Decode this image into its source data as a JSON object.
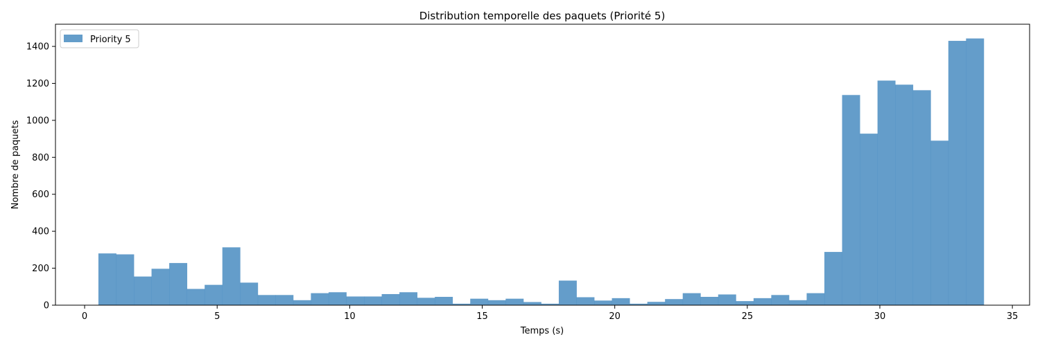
{
  "chart_data": {
    "type": "bar",
    "title": "Distribution temporelle des paquets (Priorité 5)",
    "xlabel": "Temps (s)",
    "ylabel": "Nombre de paquets",
    "xlim": [
      -1.1,
      35.65
    ],
    "ylim": [
      0,
      1520
    ],
    "xticks": [
      0,
      5,
      10,
      15,
      20,
      25,
      30,
      35
    ],
    "yticks": [
      0,
      200,
      400,
      600,
      800,
      1000,
      1200,
      1400
    ],
    "grid": false,
    "legend": "top-left",
    "color": "#4f8fc3",
    "bin_start": 0.52,
    "bin_width": 0.668,
    "series": [
      {
        "name": "Priority 5",
        "values": [
          280,
          275,
          155,
          197,
          228,
          88,
          110,
          313,
          122,
          55,
          55,
          27,
          65,
          70,
          47,
          47,
          60,
          70,
          40,
          45,
          8,
          35,
          27,
          35,
          17,
          8,
          133,
          43,
          25,
          38,
          8,
          18,
          33,
          65,
          45,
          58,
          22,
          38,
          55,
          27,
          65,
          288,
          1137,
          928,
          1215,
          1193,
          1163,
          890,
          1430,
          1443
        ]
      }
    ]
  }
}
